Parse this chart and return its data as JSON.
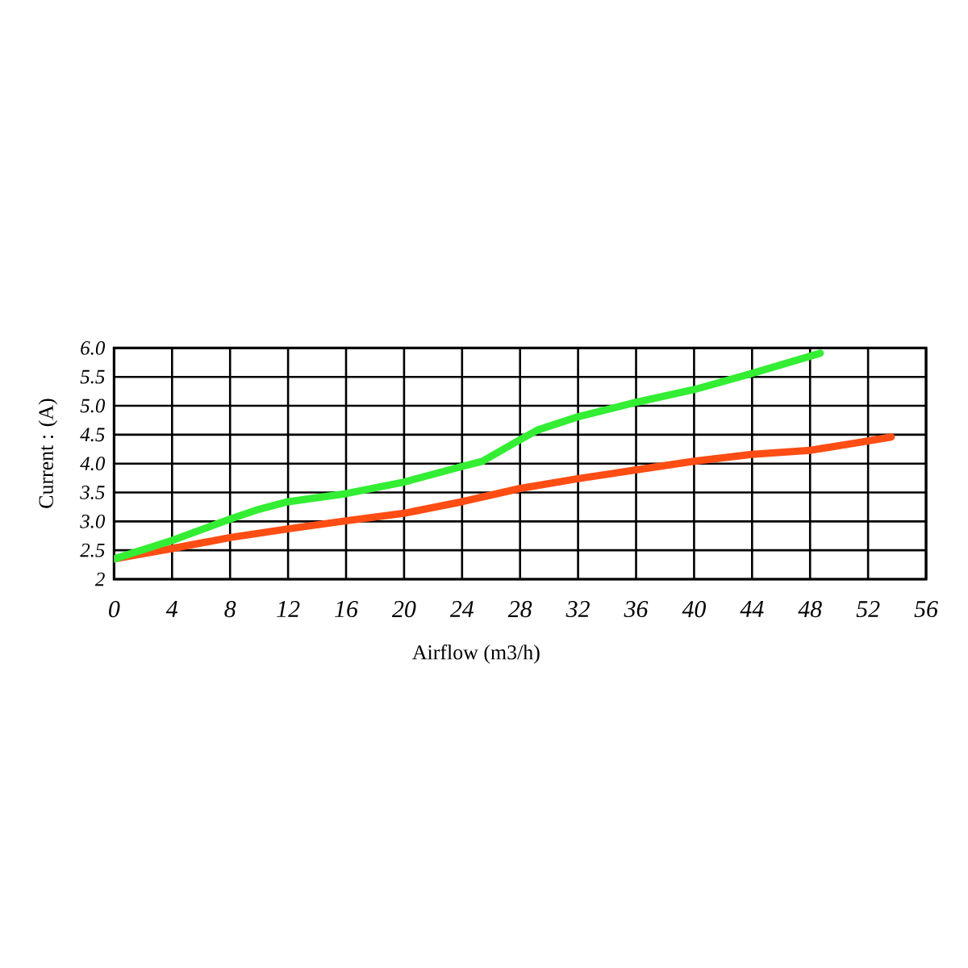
{
  "chart_data": {
    "type": "line",
    "xlabel": "Airflow (m3/h)",
    "ylabel": "Current : (A)",
    "xlim": [
      0,
      56
    ],
    "ylim": [
      2,
      6
    ],
    "xticks": [
      0,
      4,
      8,
      12,
      16,
      20,
      24,
      28,
      32,
      36,
      40,
      44,
      48,
      52,
      56
    ],
    "yticks": [
      2,
      2.5,
      {
        "value": 3,
        "label": "3.0"
      },
      3.5,
      {
        "value": 4,
        "label": "4.0"
      },
      4.5,
      {
        "value": 5,
        "label": "5.0"
      },
      5.5,
      {
        "value": 6,
        "label": "6.0"
      }
    ],
    "grid": true,
    "marker": "none",
    "line_style": "solid",
    "series": [
      {
        "color": "#ff4d14",
        "x": [
          0,
          4,
          8,
          12,
          16,
          20,
          24,
          28,
          32,
          36,
          40,
          44,
          48,
          51.5,
          53.6
        ],
        "values": [
          2.35,
          2.53,
          2.72,
          2.87,
          3.01,
          3.14,
          3.34,
          3.57,
          3.74,
          3.89,
          4.04,
          4.16,
          4.23,
          4.37,
          4.46
        ]
      },
      {
        "color": "#33ee33",
        "x": [
          0,
          4,
          8,
          10,
          12,
          16,
          20,
          24,
          25.4,
          27.7,
          29.2,
          32,
          36,
          40,
          44,
          48.7
        ],
        "values": [
          2.35,
          2.67,
          3.04,
          3.21,
          3.34,
          3.48,
          3.68,
          3.95,
          4.04,
          4.37,
          4.58,
          4.81,
          5.06,
          5.28,
          5.56,
          5.91
        ]
      }
    ]
  }
}
